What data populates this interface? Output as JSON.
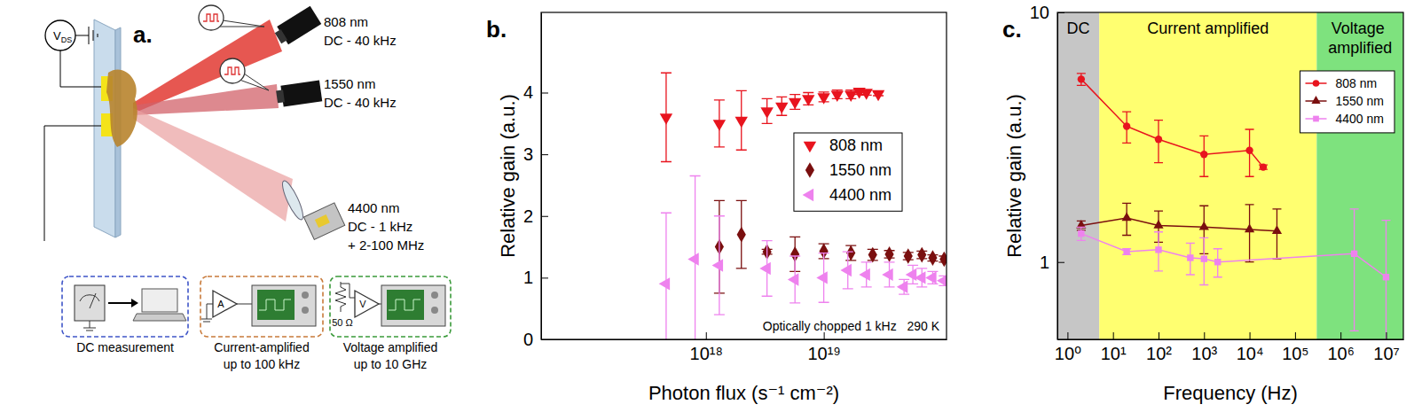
{
  "diagram": {
    "label": "a.",
    "bias": {
      "symbol": "V",
      "subscript": "DS"
    },
    "sources": [
      {
        "wavelength": "808 nm",
        "modulation": [
          "DC - 40 kHz"
        ]
      },
      {
        "wavelength": "1550 nm",
        "modulation": [
          "DC - 40 kHz"
        ]
      },
      {
        "wavelength": "4400 nm",
        "modulation": [
          "DC - 1 kHz",
          "+ 2-100 MHz"
        ]
      }
    ],
    "setups": [
      {
        "caption": [
          "DC measurement"
        ]
      },
      {
        "caption": [
          "Current-amplified",
          "up to 100 kHz"
        ],
        "amplifier": "A"
      },
      {
        "caption": [
          "Voltage amplified",
          "up to 10 GHz"
        ],
        "amplifier": "V",
        "resistor": "50 Ω"
      }
    ]
  },
  "chart_data": [
    {
      "type": "scatter",
      "title": "b.",
      "x_label": "Photon flux (s⁻¹ cm⁻²)",
      "y_label": "Relative gain (a.u.)",
      "log": "x",
      "xlim": [
        4e+16,
        1.1e+20
      ],
      "xticks": [
        {
          "value": 1e+18,
          "label": "10¹⁸"
        },
        {
          "value": 1e+19,
          "label": "10¹⁹"
        }
      ],
      "ylim": [
        0,
        5.3
      ],
      "yticks": [
        0,
        1,
        2,
        3,
        4
      ],
      "legend": "right",
      "annotation": "Optically chopped 1 kHz   290 K",
      "series": [
        {
          "name": "808 nm",
          "color": "#e8141e",
          "marker": "triangle-down",
          "x": [
            4.6e+17,
            1.3e+18,
            2e+18,
            3.3e+18,
            4.4e+18,
            5.7e+18,
            7.4e+18,
            1e+19,
            1.3e+19,
            1.7e+19,
            2e+19,
            2.3e+19,
            2.9e+19
          ],
          "values": [
            3.6,
            3.5,
            3.55,
            3.7,
            3.78,
            3.85,
            3.9,
            3.93,
            3.97,
            3.97,
            4.02,
            4.0,
            3.98
          ],
          "errors": [
            0.72,
            0.38,
            0.48,
            0.2,
            0.15,
            0.12,
            0.1,
            0.08,
            0.07,
            0.07,
            0.05,
            0.04,
            0.03
          ]
        },
        {
          "name": "1550 nm",
          "color": "#7a0f0f",
          "marker": "diamond",
          "x": [
            1.3e+18,
            2e+18,
            3.3e+18,
            5.7e+18,
            1e+19,
            1.7e+19,
            2.6e+19,
            3.6e+19,
            5.2e+19,
            6.8e+19,
            8.4e+19,
            1.05e+20
          ],
          "values": [
            1.5,
            1.7,
            1.42,
            1.38,
            1.43,
            1.4,
            1.37,
            1.38,
            1.35,
            1.37,
            1.32,
            1.3
          ],
          "errors": [
            0.75,
            0.55,
            0.04,
            0.28,
            0.12,
            0.12,
            0.09,
            0.06,
            0.06,
            0.06,
            0.05,
            0.05
          ]
        },
        {
          "name": "4400 nm",
          "color": "#ee82ee",
          "marker": "triangle-left",
          "x": [
            4.6e+17,
            8.1e+17,
            1.3e+18,
            3.3e+18,
            5.7e+18,
            1e+19,
            1.6e+19,
            2.3e+19,
            3.6e+19,
            4.8e+19,
            5.7e+19,
            6.8e+19,
            8.4e+19,
            1.05e+20
          ],
          "values": [
            0.9,
            1.3,
            1.2,
            1.15,
            0.97,
            1.0,
            1.12,
            1.05,
            1.05,
            0.85,
            1.05,
            1.0,
            1.0,
            0.95
          ],
          "errors": [
            1.15,
            1.35,
            0.8,
            0.45,
            0.38,
            0.4,
            0.3,
            0.2,
            0.2,
            0.12,
            0.15,
            0.15,
            0.1,
            0.08
          ]
        }
      ]
    },
    {
      "type": "line",
      "title": "c.",
      "x_label": "Frequency (Hz)",
      "y_label": "Relative gain (a.u.)",
      "log": true,
      "xlim": [
        0.6,
        24000000.0
      ],
      "xticks": [
        {
          "value": 1,
          "label": "10⁰"
        },
        {
          "value": 10,
          "label": "10¹"
        },
        {
          "value": 100,
          "label": "10²"
        },
        {
          "value": 1000,
          "label": "10³"
        },
        {
          "value": 10000,
          "label": "10⁴"
        },
        {
          "value": 100000,
          "label": "10⁵"
        },
        {
          "value": 1000000,
          "label": "10⁶"
        },
        {
          "value": 10000000,
          "label": "10⁷"
        }
      ],
      "ylim": [
        0.49,
        10
      ],
      "yticks": [
        1,
        10
      ],
      "legend": "upper right",
      "regions": [
        {
          "label": "DC",
          "range": [
            0.6,
            5
          ]
        },
        {
          "label": "Current amplified",
          "range": [
            5,
            300000
          ]
        },
        {
          "label": "Voltage amplified",
          "range": [
            300000,
            24000000.0
          ]
        }
      ],
      "series": [
        {
          "name": "808 nm",
          "color": "#e8141e",
          "marker": "circle",
          "x": [
            2,
            20,
            100,
            1000,
            10000,
            20000
          ],
          "values": [
            5.4,
            3.5,
            3.1,
            2.7,
            2.8,
            2.4
          ],
          "errors": [
            0.3,
            0.5,
            0.6,
            0.5,
            0.6,
            0.05
          ]
        },
        {
          "name": "1550 nm",
          "color": "#7a0f0f",
          "marker": "triangle-up",
          "x": [
            2,
            20,
            100,
            1000,
            10000,
            40000
          ],
          "values": [
            1.4,
            1.5,
            1.4,
            1.38,
            1.35,
            1.33
          ],
          "errors": [
            0.06,
            0.22,
            0.2,
            0.3,
            0.35,
            0.3
          ]
        },
        {
          "name": "4400 nm",
          "color": "#ee82ee",
          "marker": "square",
          "x": [
            2,
            20,
            100,
            500,
            1000,
            2000,
            2000000,
            10000000
          ],
          "values": [
            1.3,
            1.1,
            1.12,
            1.04,
            1.03,
            1.0,
            1.08,
            0.87
          ],
          "errors": [
            0.08,
            0.03,
            0.2,
            0.15,
            0.22,
            0.13,
            0.55,
            0.6
          ]
        }
      ]
    }
  ]
}
